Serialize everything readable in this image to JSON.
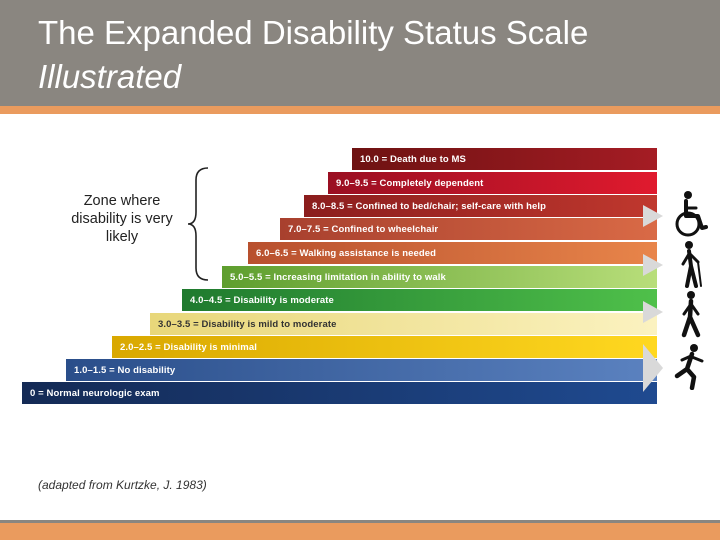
{
  "title": {
    "line1": "The Expanded Disability Status Scale",
    "line2": "Illustrated"
  },
  "zone_label": "Zone where disability is very likely",
  "citation": "(adapted from Kurtzke, J. 1983)",
  "scale_levels": [
    {
      "label": "10.0 = Death due to MS",
      "color": "#8b1a1a"
    },
    {
      "label": "9.0–9.5 = Completely dependent",
      "color": "#c8102e"
    },
    {
      "label": "8.0–8.5 = Confined to bed/chair; self-care with help",
      "color": "#b0302a"
    },
    {
      "label": "7.0–7.5 = Confined to wheelchair",
      "color": "#c8553a"
    },
    {
      "label": "6.0–6.5 = Walking assistance is needed",
      "color": "#d9673a"
    },
    {
      "label": "5.0–5.5 = Increasing limitation in ability to walk",
      "color": "#8cc63f"
    },
    {
      "label": "4.0–4.5 = Disability is moderate",
      "color": "#2e9e3e"
    },
    {
      "label": "3.0–3.5 = Disability is mild to moderate",
      "color": "#f5e79e"
    },
    {
      "label": "2.0–2.5 = Disability is minimal",
      "color": "#f2c200"
    },
    {
      "label": "1.0–1.5 = No disability",
      "color": "#3a5fa0"
    },
    {
      "label": "0 = Normal neurologic exam",
      "color": "#1f3b73"
    }
  ],
  "icons": [
    "wheelchair-icon",
    "cane-walker-icon",
    "walking-person-icon",
    "running-person-icon"
  ]
}
